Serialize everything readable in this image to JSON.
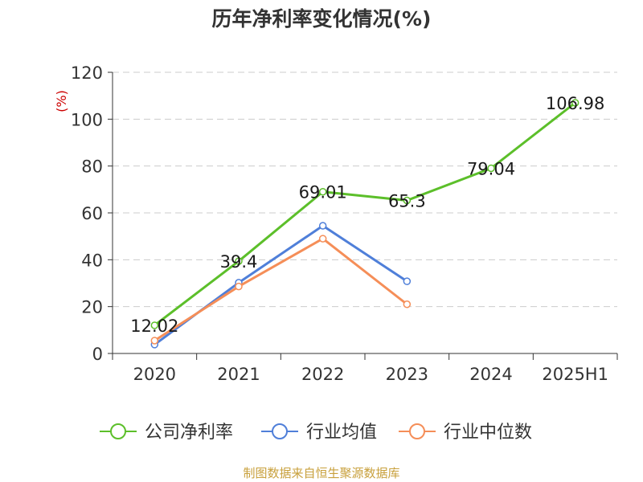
{
  "chart_data": {
    "type": "line",
    "title": "历年净利率变化情况(%)",
    "ylabel": "(%)",
    "categories": [
      "2020",
      "2021",
      "2022",
      "2023",
      "2024",
      "2025H1"
    ],
    "yticks": [
      "0",
      "20",
      "40",
      "60",
      "80",
      "100",
      "120"
    ],
    "ylim": [
      0,
      120
    ],
    "grid": true,
    "legend_position": "bottom",
    "series": [
      {
        "name": "公司净利率",
        "color": "#5cbf2a",
        "values": [
          12.02,
          39.4,
          69.01,
          65.3,
          79.04,
          106.98
        ],
        "labels": [
          "12.02",
          "39.4",
          "69.01",
          "65.3",
          "79.04",
          "106.98"
        ]
      },
      {
        "name": "行业均值",
        "color": "#4f7fd9",
        "values": [
          3.8,
          30.2,
          54.5,
          30.8,
          null,
          null
        ]
      },
      {
        "name": "行业中位数",
        "color": "#f58e58",
        "values": [
          5.5,
          28.6,
          49.0,
          21.0,
          null,
          null
        ]
      }
    ]
  },
  "source": "制图数据来自恒生聚源数据库"
}
